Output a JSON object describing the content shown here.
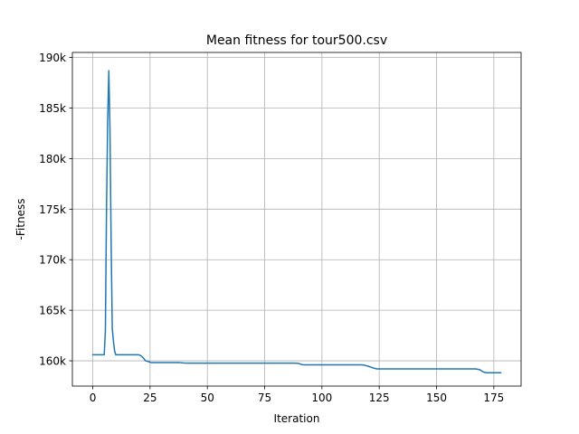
{
  "chart_data": {
    "type": "line",
    "title": "Mean fitness for tour500.csv",
    "xlabel": "Iteration",
    "ylabel": "-Fitness",
    "xlim": [
      -8.9,
      186.9
    ],
    "ylim": [
      157500,
      190500
    ],
    "grid": true,
    "xticks": [
      {
        "value": 0,
        "label": "0"
      },
      {
        "value": 25,
        "label": "25"
      },
      {
        "value": 50,
        "label": "50"
      },
      {
        "value": 75,
        "label": "75"
      },
      {
        "value": 100,
        "label": "100"
      },
      {
        "value": 125,
        "label": "125"
      },
      {
        "value": 150,
        "label": "150"
      },
      {
        "value": 175,
        "label": "175"
      }
    ],
    "yticks": [
      {
        "value": 160000,
        "label": "160k"
      },
      {
        "value": 165000,
        "label": "165k"
      },
      {
        "value": 170000,
        "label": "170k"
      },
      {
        "value": 175000,
        "label": "175k"
      },
      {
        "value": 180000,
        "label": "180k"
      },
      {
        "value": 185000,
        "label": "185k"
      },
      {
        "value": 190000,
        "label": "190k"
      }
    ],
    "series": [
      {
        "color": "#1f77b4",
        "x": [
          0,
          5,
          5.5,
          6,
          6.5,
          7,
          7.5,
          8,
          8.5,
          9,
          9.5,
          10,
          11,
          12,
          15,
          20,
          21,
          22,
          23,
          24,
          25,
          26,
          30,
          38,
          40,
          42,
          50,
          60,
          70,
          80,
          88,
          89,
          90,
          91,
          92,
          100,
          110,
          117,
          118,
          119,
          120,
          121,
          122,
          123,
          124,
          130,
          140,
          150,
          160,
          167,
          168,
          169,
          170,
          171,
          172,
          175,
          178
        ],
        "y": [
          160600,
          160600,
          163000,
          175000,
          183700,
          188700,
          183000,
          172000,
          163200,
          162000,
          161000,
          160600,
          160600,
          160600,
          160600,
          160600,
          160500,
          160300,
          160000,
          159950,
          159850,
          159820,
          159820,
          159820,
          159780,
          159770,
          159770,
          159770,
          159770,
          159770,
          159770,
          159760,
          159730,
          159640,
          159600,
          159600,
          159600,
          159600,
          159590,
          159540,
          159480,
          159400,
          159320,
          159250,
          159200,
          159200,
          159200,
          159200,
          159200,
          159200,
          159170,
          159100,
          158950,
          158850,
          158820,
          158820,
          158820
        ]
      }
    ]
  }
}
